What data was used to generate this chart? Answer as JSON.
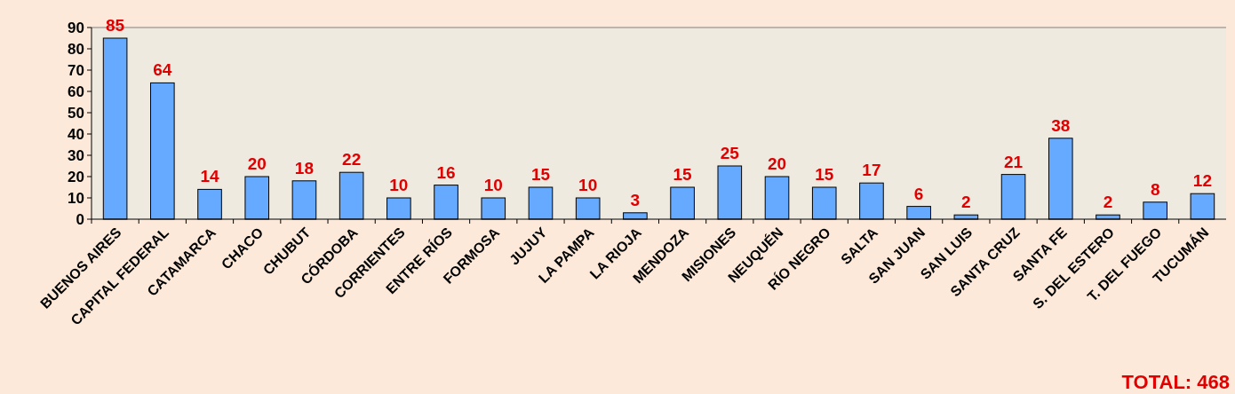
{
  "chart_data": {
    "type": "bar",
    "categories": [
      "BUENOS AIRES",
      "CAPITAL FEDERAL",
      "CATAMARCA",
      "CHACO",
      "CHUBUT",
      "CÓRDOBA",
      "CORRIENTES",
      "ENTRE RÍOS",
      "FORMOSA",
      "JUJUY",
      "LA PAMPA",
      "LA RIOJA",
      "MENDOZA",
      "MISIONES",
      "NEUQUÉN",
      "RÍO NEGRO",
      "SALTA",
      "SAN JUAN",
      "SAN LUIS",
      "SANTA CRUZ",
      "SANTA FE",
      "S. DEL ESTERO",
      "T. DEL FUEGO",
      "TUCUMÁN"
    ],
    "values": [
      85,
      64,
      14,
      20,
      18,
      22,
      10,
      16,
      10,
      15,
      10,
      3,
      15,
      25,
      20,
      15,
      17,
      6,
      2,
      21,
      38,
      2,
      8,
      12
    ],
    "color": "#66aaff",
    "ylim": [
      0,
      90
    ],
    "yticks": [
      0,
      10,
      20,
      30,
      40,
      50,
      60,
      70,
      80,
      90
    ],
    "data_labels": true,
    "annotations": [
      "TOTAL: 468"
    ]
  }
}
